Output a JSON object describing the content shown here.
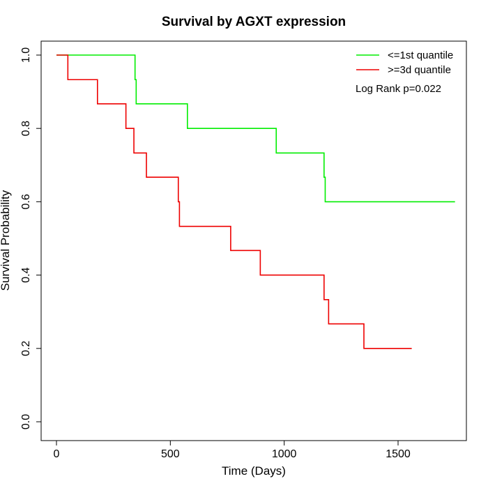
{
  "chart_data": {
    "type": "line",
    "title": "Survival by AGXT expression",
    "xlabel": "Time (Days)",
    "ylabel": "Survival Probability",
    "xlim": [
      0,
      1800
    ],
    "ylim": [
      0,
      1
    ],
    "x_ticks": [
      0,
      500,
      1000,
      1500
    ],
    "y_ticks": [
      0.0,
      0.2,
      0.4,
      0.6,
      0.8,
      1.0
    ],
    "x_tick_labels": [
      "0",
      "500",
      "1000",
      "1500"
    ],
    "y_tick_labels": [
      "0.0",
      "0.2",
      "0.4",
      "0.6",
      "0.8",
      "1.0"
    ],
    "grid": false,
    "legend_position": "top-right",
    "annotation": "Log Rank p=0.022",
    "series": [
      {
        "name": "<=1st quantile",
        "color": "#00ee00",
        "step": true,
        "x": [
          0,
          330,
          345,
          350,
          575,
          965,
          1175,
          1180,
          1750
        ],
        "y": [
          1.0,
          1.0,
          0.933,
          0.867,
          0.8,
          0.733,
          0.667,
          0.6,
          0.6
        ]
      },
      {
        "name": ">=3d quantile",
        "color": "#ee0000",
        "step": true,
        "x": [
          0,
          50,
          180,
          305,
          340,
          395,
          535,
          540,
          765,
          895,
          1175,
          1195,
          1350,
          1560
        ],
        "y": [
          1.0,
          0.933,
          0.867,
          0.8,
          0.733,
          0.667,
          0.6,
          0.533,
          0.467,
          0.4,
          0.333,
          0.267,
          0.2,
          0.2
        ]
      }
    ]
  }
}
